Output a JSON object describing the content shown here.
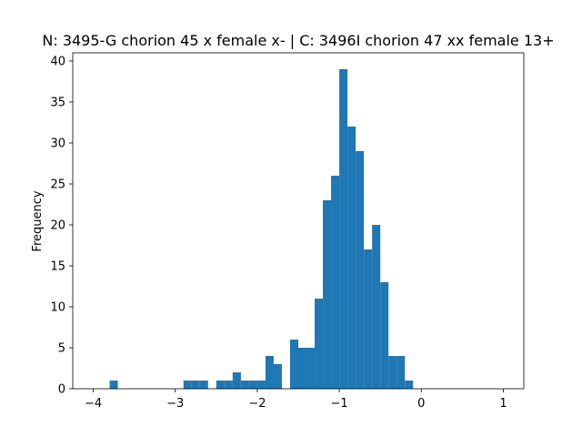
{
  "chart_data": {
    "type": "bar",
    "title": "N: 3495-G chorion 45 x female x- | C: 3496I chorion 47 xx female 13+",
    "xlabel": "",
    "ylabel": "Frequency",
    "xlim": [
      -4.25,
      1.25
    ],
    "ylim": [
      0,
      41
    ],
    "x_ticks": [
      -4,
      -3,
      -2,
      -1,
      0,
      1
    ],
    "y_ticks": [
      0,
      5,
      10,
      15,
      20,
      25,
      30,
      35,
      40
    ],
    "grid": false,
    "bar_color": "#1f77b4",
    "bins": [
      {
        "x0": -3.8,
        "x1": -3.7,
        "count": 1
      },
      {
        "x0": -2.9,
        "x1": -2.8,
        "count": 1
      },
      {
        "x0": -2.8,
        "x1": -2.7,
        "count": 1
      },
      {
        "x0": -2.7,
        "x1": -2.6,
        "count": 1
      },
      {
        "x0": -2.5,
        "x1": -2.4,
        "count": 1
      },
      {
        "x0": -2.4,
        "x1": -2.3,
        "count": 1
      },
      {
        "x0": -2.3,
        "x1": -2.2,
        "count": 2
      },
      {
        "x0": -2.2,
        "x1": -2.1,
        "count": 1
      },
      {
        "x0": -2.1,
        "x1": -2.0,
        "count": 1
      },
      {
        "x0": -2.0,
        "x1": -1.9,
        "count": 1
      },
      {
        "x0": -1.9,
        "x1": -1.8,
        "count": 4
      },
      {
        "x0": -1.8,
        "x1": -1.7,
        "count": 3
      },
      {
        "x0": -1.6,
        "x1": -1.5,
        "count": 6
      },
      {
        "x0": -1.5,
        "x1": -1.4,
        "count": 5
      },
      {
        "x0": -1.4,
        "x1": -1.3,
        "count": 5
      },
      {
        "x0": -1.3,
        "x1": -1.2,
        "count": 11
      },
      {
        "x0": -1.2,
        "x1": -1.1,
        "count": 23
      },
      {
        "x0": -1.1,
        "x1": -1.0,
        "count": 26
      },
      {
        "x0": -1.0,
        "x1": -0.9,
        "count": 39
      },
      {
        "x0": -0.9,
        "x1": -0.8,
        "count": 32
      },
      {
        "x0": -0.8,
        "x1": -0.7,
        "count": 29
      },
      {
        "x0": -0.7,
        "x1": -0.6,
        "count": 17
      },
      {
        "x0": -0.6,
        "x1": -0.5,
        "count": 20
      },
      {
        "x0": -0.5,
        "x1": -0.4,
        "count": 13
      },
      {
        "x0": -0.4,
        "x1": -0.3,
        "count": 4
      },
      {
        "x0": -0.3,
        "x1": -0.2,
        "count": 4
      },
      {
        "x0": -0.2,
        "x1": -0.1,
        "count": 1
      }
    ]
  }
}
